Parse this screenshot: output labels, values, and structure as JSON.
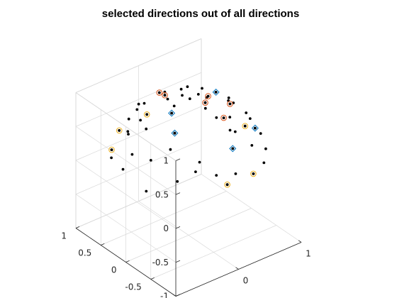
{
  "chart_data": {
    "type": "scatter",
    "title": "selected directions out of all directions",
    "xlabel": "",
    "ylabel": "",
    "zlabel": "",
    "view": "3d-isometric",
    "grid": true,
    "xlim": [
      -1,
      1
    ],
    "ylim": [
      -1,
      1
    ],
    "zlim": [
      -1,
      1
    ],
    "x_ticks": [
      -1,
      0,
      1
    ],
    "y_ticks": [
      -1,
      -0.5,
      0,
      0.5,
      1
    ],
    "z_ticks": [
      -1,
      -0.5,
      0,
      0.5,
      1
    ],
    "x_tick_labels": [
      "-1",
      "0",
      "1"
    ],
    "y_tick_labels": [
      "-1",
      "-0.5",
      "0",
      "0.5",
      "1"
    ],
    "z_tick_labels": [
      "-1",
      "-0.5",
      "0",
      "0.5",
      "1"
    ],
    "colors": {
      "all": "#000000",
      "group_blue": "#0072bd",
      "group_orange": "#d95319",
      "group_yellow": "#edb120"
    },
    "series": [
      {
        "role": "all",
        "marker": "dot",
        "color": "#000000",
        "points": [
          [
            0.13,
            -0.17,
            0.99
          ],
          [
            -0.1,
            0.35,
            0.93
          ],
          [
            -0.31,
            -0.05,
            0.95
          ],
          [
            0.21,
            -0.44,
            0.87
          ],
          [
            0.28,
            -0.04,
            0.96
          ],
          [
            -0.02,
            0.56,
            0.83
          ],
          [
            0.5,
            -0.2,
            0.84
          ],
          [
            -0.46,
            -0.3,
            0.84
          ],
          [
            0.09,
            -0.77,
            0.63
          ],
          [
            0.58,
            0.18,
            0.79
          ],
          [
            0.67,
            -0.49,
            0.56
          ],
          [
            0.34,
            0.45,
            0.83
          ],
          [
            -0.23,
            0.71,
            0.67
          ],
          [
            -0.62,
            0.07,
            0.78
          ],
          [
            0.81,
            0.12,
            0.57
          ],
          [
            -0.53,
            0.53,
            0.66
          ],
          [
            -0.8,
            -0.25,
            0.55
          ],
          [
            0.01,
            0.14,
            0.99
          ],
          [
            0.7,
            0.52,
            0.49
          ],
          [
            -0.69,
            0.35,
            0.63
          ],
          [
            0.57,
            0.69,
            0.44
          ],
          [
            0.42,
            -0.74,
            0.53
          ],
          [
            0.1,
            0.96,
            0.26
          ],
          [
            -0.78,
            0.56,
            0.29
          ],
          [
            0.87,
            -0.06,
            0.49
          ],
          [
            0.92,
            0.33,
            0.21
          ],
          [
            -0.95,
            0.12,
            0.29
          ],
          [
            0.44,
            0.84,
            0.31
          ],
          [
            -0.39,
            -0.71,
            0.59
          ],
          [
            0.32,
            0.82,
            0.47
          ],
          [
            0.76,
            -0.59,
            0.27
          ],
          [
            -0.14,
            -0.95,
            0.28
          ],
          [
            0.98,
            0.1,
            0.17
          ],
          [
            0.3,
            -0.92,
            0.25
          ],
          [
            -0.42,
            0.86,
            0.28
          ],
          [
            0.07,
            -0.25,
            0.97
          ],
          [
            -0.93,
            -0.32,
            0.18
          ],
          [
            0.58,
            -0.78,
            0.23
          ],
          [
            0.85,
            0.51,
            0.14
          ],
          [
            -0.68,
            -0.63,
            0.38
          ],
          [
            -0.18,
            0.98,
            0.07
          ],
          [
            0.47,
            0.32,
            0.82
          ],
          [
            0.25,
            -0.62,
            0.74
          ],
          [
            -0.47,
            -0.73,
            0.49
          ],
          [
            0.91,
            -0.3,
            0.29
          ],
          [
            -0.25,
            -0.87,
            0.42
          ],
          [
            -0.84,
            0.49,
            0.23
          ],
          [
            0.72,
            0.1,
            0.69
          ],
          [
            -0.3,
            0.51,
            0.81
          ],
          [
            0.17,
            0.69,
            0.7
          ],
          [
            0.01,
            -0.93,
            0.37
          ],
          [
            0.53,
            -0.13,
            0.84
          ],
          [
            -0.6,
            -0.39,
            0.7
          ],
          [
            0.71,
            -0.34,
            0.61
          ],
          [
            0.61,
            0.57,
            0.55
          ],
          [
            -0.56,
            0.26,
            0.79
          ],
          [
            0.36,
            0.6,
            0.71
          ],
          [
            -0.12,
            0.88,
            0.46
          ],
          [
            0.94,
            0.35,
            0.0
          ],
          [
            -0.86,
            0.05,
            0.51
          ]
        ]
      },
      {
        "role": "selected",
        "marker": "diamond",
        "color": "#0072bd",
        "points": [
          [
            0.58,
            0.18,
            0.79
          ],
          [
            -0.31,
            -0.05,
            0.95
          ],
          [
            -0.46,
            -0.3,
            0.84
          ],
          [
            0.09,
            -0.77,
            0.63
          ],
          [
            0.67,
            -0.49,
            0.56
          ]
        ]
      },
      {
        "role": "selected",
        "marker": "circle",
        "color": "#d95319",
        "points": [
          [
            0.13,
            -0.17,
            0.99
          ],
          [
            0.28,
            -0.04,
            0.96
          ],
          [
            -0.1,
            0.35,
            0.93
          ],
          [
            0.21,
            -0.44,
            0.87
          ],
          [
            0.5,
            -0.2,
            0.84
          ],
          [
            -0.02,
            0.56,
            0.83
          ]
        ]
      },
      {
        "role": "selected",
        "marker": "circle",
        "color": "#edb120",
        "points": [
          [
            0.1,
            0.96,
            0.26
          ],
          [
            -0.78,
            0.56,
            0.29
          ],
          [
            -0.14,
            -0.95,
            0.28
          ],
          [
            0.98,
            0.1,
            0.17
          ],
          [
            0.3,
            -0.92,
            0.25
          ],
          [
            -0.42,
            0.86,
            0.28
          ]
        ]
      }
    ]
  }
}
